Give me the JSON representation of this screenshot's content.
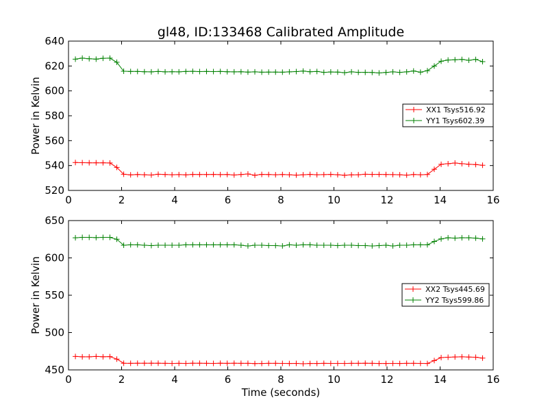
{
  "figure": {
    "title": "gl48, ID:133468 Calibrated Amplitude",
    "xlabel": "Time (seconds)"
  },
  "colors": {
    "XX": "#ff0000",
    "YY": "#008000",
    "axis": "#000000",
    "background": "#ffffff"
  },
  "chart_data": [
    {
      "type": "line",
      "ylabel": "Power in Kelvin",
      "xlim": [
        0,
        16
      ],
      "ylim": [
        520,
        640
      ],
      "xticks": [
        0,
        2,
        4,
        6,
        8,
        10,
        12,
        14,
        16
      ],
      "yticks": [
        520,
        540,
        560,
        580,
        600,
        620,
        640
      ],
      "grid": false,
      "legend_position": "right",
      "x": [
        0.26,
        0.52,
        0.78,
        1.04,
        1.3,
        1.56,
        1.82,
        2.08,
        2.34,
        2.6,
        2.86,
        3.12,
        3.38,
        3.64,
        3.9,
        4.16,
        4.42,
        4.68,
        4.94,
        5.2,
        5.46,
        5.72,
        5.98,
        6.24,
        6.5,
        6.76,
        7.02,
        7.28,
        7.54,
        7.8,
        8.06,
        8.32,
        8.58,
        8.84,
        9.1,
        9.36,
        9.62,
        9.88,
        10.14,
        10.4,
        10.66,
        10.92,
        11.18,
        11.44,
        11.7,
        11.96,
        12.22,
        12.48,
        12.74,
        13.0,
        13.26,
        13.52,
        13.78,
        14.04,
        14.3,
        14.56,
        14.82,
        15.08,
        15.34,
        15.6
      ],
      "series": [
        {
          "name": "XX1 Tsys516.92",
          "color": "#ff0000",
          "values": [
            542.4,
            542.3,
            542.2,
            542.2,
            542.2,
            542.1,
            538.5,
            533.0,
            532.5,
            532.8,
            532.6,
            532.4,
            533.0,
            532.8,
            532.6,
            532.7,
            532.5,
            532.9,
            532.8,
            532.8,
            532.9,
            532.7,
            532.8,
            532.4,
            532.8,
            533.2,
            532.2,
            532.9,
            532.8,
            532.6,
            532.8,
            532.6,
            532.3,
            532.6,
            532.9,
            532.6,
            532.7,
            532.9,
            532.6,
            532.2,
            532.5,
            532.6,
            533.0,
            532.9,
            532.9,
            532.8,
            532.7,
            532.6,
            532.3,
            532.8,
            532.6,
            532.8,
            537.0,
            541.0,
            541.5,
            542.0,
            541.5,
            541.0,
            540.8,
            540.2
          ]
        },
        {
          "name": "YY1 Tsys602.39",
          "color": "#008000",
          "values": [
            625.5,
            626.3,
            625.8,
            625.5,
            626.2,
            626.3,
            623.0,
            615.8,
            615.6,
            615.6,
            615.4,
            615.3,
            615.6,
            615.3,
            615.4,
            615.3,
            615.6,
            615.7,
            615.5,
            615.6,
            615.5,
            615.6,
            615.4,
            615.3,
            615.4,
            615.1,
            615.3,
            615.0,
            615.1,
            615.1,
            615.0,
            615.3,
            615.5,
            615.9,
            615.4,
            615.6,
            614.9,
            615.2,
            615.1,
            614.6,
            615.3,
            614.9,
            614.9,
            614.8,
            614.4,
            614.8,
            615.3,
            614.9,
            615.3,
            616.0,
            615.0,
            616.2,
            620.0,
            623.8,
            624.8,
            625.0,
            625.3,
            624.6,
            625.3,
            623.5
          ]
        }
      ]
    },
    {
      "type": "line",
      "ylabel": "Power in Kelvin",
      "xlabel": "Time (seconds)",
      "xlim": [
        0,
        16
      ],
      "ylim": [
        450,
        650
      ],
      "xticks": [
        0,
        2,
        4,
        6,
        8,
        10,
        12,
        14,
        16
      ],
      "yticks": [
        450,
        500,
        550,
        600,
        650
      ],
      "grid": false,
      "legend_position": "right",
      "x": [
        0.26,
        0.52,
        0.78,
        1.04,
        1.3,
        1.56,
        1.82,
        2.08,
        2.34,
        2.6,
        2.86,
        3.12,
        3.38,
        3.64,
        3.9,
        4.16,
        4.42,
        4.68,
        4.94,
        5.2,
        5.46,
        5.72,
        5.98,
        6.24,
        6.5,
        6.76,
        7.02,
        7.28,
        7.54,
        7.8,
        8.06,
        8.32,
        8.58,
        8.84,
        9.1,
        9.36,
        9.62,
        9.88,
        10.14,
        10.4,
        10.66,
        10.92,
        11.18,
        11.44,
        11.7,
        11.96,
        12.22,
        12.48,
        12.74,
        13.0,
        13.26,
        13.52,
        13.78,
        14.04,
        14.3,
        14.56,
        14.82,
        15.08,
        15.34,
        15.6
      ],
      "series": [
        {
          "name": "XX2 Tsys445.69",
          "color": "#ff0000",
          "values": [
            468.0,
            467.5,
            467.5,
            468.0,
            467.6,
            467.8,
            464.5,
            459.0,
            458.8,
            458.9,
            458.9,
            458.9,
            459.0,
            458.8,
            458.7,
            458.8,
            458.7,
            458.9,
            458.9,
            458.8,
            458.7,
            458.9,
            458.8,
            458.9,
            458.8,
            458.8,
            458.5,
            458.6,
            458.8,
            458.8,
            458.7,
            458.6,
            458.7,
            458.3,
            458.6,
            458.6,
            458.8,
            458.7,
            458.7,
            458.7,
            458.8,
            458.8,
            459.0,
            458.8,
            458.6,
            458.6,
            458.7,
            458.6,
            458.8,
            458.8,
            458.7,
            458.6,
            462.5,
            466.5,
            467.0,
            467.3,
            467.5,
            467.2,
            467.0,
            465.8
          ]
        },
        {
          "name": "YY2 Tsys599.86",
          "color": "#008000",
          "values": [
            627.0,
            627.5,
            627.5,
            627.2,
            627.5,
            627.5,
            625.0,
            617.0,
            617.5,
            617.5,
            617.0,
            616.5,
            617.0,
            617.0,
            617.0,
            617.0,
            617.5,
            617.5,
            617.5,
            617.5,
            617.5,
            617.5,
            617.5,
            617.5,
            617.0,
            616.0,
            617.0,
            617.0,
            616.5,
            616.5,
            616.0,
            617.5,
            617.0,
            617.5,
            617.5,
            617.0,
            617.0,
            617.0,
            616.5,
            617.0,
            617.0,
            616.5,
            616.5,
            616.0,
            616.5,
            617.0,
            616.0,
            617.0,
            617.0,
            617.5,
            617.5,
            617.5,
            622.0,
            625.5,
            627.0,
            626.5,
            627.0,
            627.0,
            626.5,
            625.5
          ]
        }
      ]
    }
  ]
}
